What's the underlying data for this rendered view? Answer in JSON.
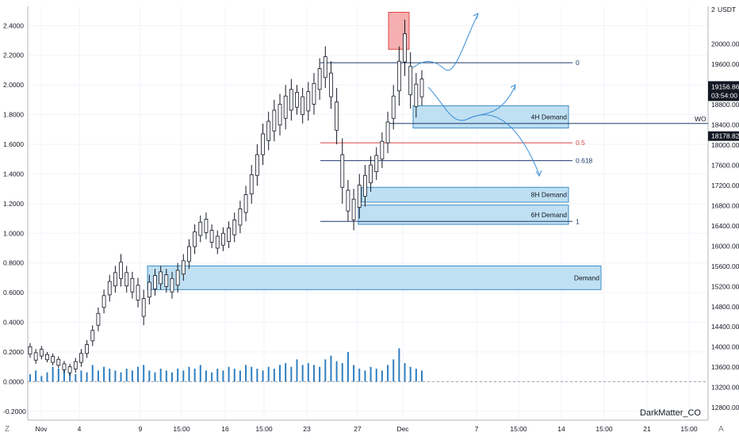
{
  "colors": {
    "background": "#ffffff",
    "grid": "#f0f3fa",
    "axis_text": "#131722",
    "candle_body": "#ffffff",
    "candle_border": "#131722",
    "zone_fill": "#bfdff2",
    "zone_border": "#3d8cc4",
    "supply_fill": "#f39b9b",
    "supply_border": "#e04848",
    "fib_line": "#1f3a6b",
    "fib_mid_line": "#d64545",
    "projection": "#3b8fd6",
    "volume": "#2f7fc1",
    "current_price_bg": "#131722"
  },
  "chart_data": {
    "type": "candlestick",
    "symbol_unit": "USDT",
    "author": "DarkMatter_CO",
    "left_axis": {
      "range": [
        -0.26,
        2.53
      ],
      "ticks": [
        "2.4000",
        "2.2000",
        "2.0000",
        "1.8000",
        "1.6000",
        "1.4000",
        "1.2000",
        "1.0000",
        "0.8000",
        "0.6000",
        "0.4000",
        "0.2000",
        "0.0000",
        "-0.2000"
      ]
    },
    "right_axis": {
      "unit": "USDT",
      "range": [
        12550,
        20750
      ],
      "ticks": [
        "20000.00",
        "19600.00",
        "19200.00",
        "18800.00",
        "18400.00",
        "18000.00",
        "17600.00",
        "17200.00",
        "16800.00",
        "16400.00",
        "16000.00",
        "15600.00",
        "15200.00",
        "14800.00",
        "14400.00",
        "14000.00",
        "13600.00",
        "13200.00",
        "12800.00"
      ],
      "partial_labels": [
        "2",
        "0"
      ],
      "price_labels": [
        "19156.86",
        "03:54:00",
        "18178.82"
      ]
    },
    "x_axis": {
      "ticks": [
        "Nov",
        "4",
        "9",
        "15:00",
        "16",
        "15:00",
        "23",
        "27",
        "Dec",
        "7",
        "15:00",
        "14",
        "15:00",
        "21",
        "15:00"
      ]
    },
    "fib_levels": [
      {
        "label": "0",
        "value": 2.15
      },
      {
        "label": "0.5",
        "value": 1.61
      },
      {
        "label": "0.618",
        "value": 1.49
      },
      {
        "label": "1",
        "value": 1.08
      }
    ],
    "zones": [
      {
        "label": "4H Demand",
        "top": 1.86,
        "bottom": 1.71
      },
      {
        "label": "8H Demand",
        "top": 1.31,
        "bottom": 1.21
      },
      {
        "label": "6H Demand",
        "top": 1.19,
        "bottom": 1.06
      },
      {
        "label": "Demand",
        "top": 0.78,
        "bottom": 0.62
      }
    ],
    "supply_zone": {
      "top": 2.49,
      "bottom": 2.24
    },
    "wo_level": {
      "label": "WO",
      "value": 1.74
    },
    "candles_hl": [
      [
        0.16,
        0.26
      ],
      [
        0.12,
        0.22
      ],
      [
        0.15,
        0.24
      ],
      [
        0.13,
        0.2
      ],
      [
        0.11,
        0.19
      ],
      [
        0.09,
        0.17
      ],
      [
        0.06,
        0.14
      ],
      [
        0.04,
        0.12
      ],
      [
        0.06,
        0.16
      ],
      [
        0.1,
        0.22
      ],
      [
        0.16,
        0.28
      ],
      [
        0.24,
        0.38
      ],
      [
        0.34,
        0.5
      ],
      [
        0.46,
        0.62
      ],
      [
        0.54,
        0.72
      ],
      [
        0.6,
        0.78
      ],
      [
        0.64,
        0.86
      ],
      [
        0.6,
        0.78
      ],
      [
        0.56,
        0.74
      ],
      [
        0.5,
        0.7
      ],
      [
        0.38,
        0.62
      ],
      [
        0.52,
        0.72
      ],
      [
        0.58,
        0.76
      ],
      [
        0.62,
        0.78
      ],
      [
        0.6,
        0.76
      ],
      [
        0.56,
        0.74
      ],
      [
        0.6,
        0.8
      ],
      [
        0.68,
        0.86
      ],
      [
        0.76,
        0.96
      ],
      [
        0.86,
        1.06
      ],
      [
        0.94,
        1.12
      ],
      [
        0.96,
        1.14
      ],
      [
        0.9,
        1.06
      ],
      [
        0.86,
        1.02
      ],
      [
        0.88,
        1.04
      ],
      [
        0.9,
        1.08
      ],
      [
        0.94,
        1.14
      ],
      [
        1.0,
        1.22
      ],
      [
        1.08,
        1.32
      ],
      [
        1.2,
        1.46
      ],
      [
        1.32,
        1.6
      ],
      [
        1.46,
        1.74
      ],
      [
        1.56,
        1.82
      ],
      [
        1.62,
        1.9
      ],
      [
        1.66,
        1.94
      ],
      [
        1.7,
        2.0
      ],
      [
        1.76,
        2.04
      ],
      [
        1.8,
        2.0
      ],
      [
        1.74,
        1.98
      ],
      [
        1.76,
        2.02
      ],
      [
        1.8,
        2.08
      ],
      [
        1.9,
        2.18
      ],
      [
        1.98,
        2.26
      ],
      [
        1.84,
        2.16
      ],
      [
        1.6,
        1.98
      ],
      [
        1.2,
        1.64
      ],
      [
        1.08,
        1.36
      ],
      [
        1.02,
        1.3
      ],
      [
        1.1,
        1.4
      ],
      [
        1.18,
        1.46
      ],
      [
        1.28,
        1.52
      ],
      [
        1.36,
        1.58
      ],
      [
        1.44,
        1.68
      ],
      [
        1.54,
        1.82
      ],
      [
        1.7,
        2.0
      ],
      [
        1.86,
        2.26
      ],
      [
        2.06,
        2.44
      ],
      [
        1.84,
        2.22
      ],
      [
        1.78,
        2.08
      ],
      [
        1.86,
        2.1
      ]
    ],
    "volume": [
      4,
      6,
      3,
      5,
      8,
      7,
      6,
      5,
      4,
      6,
      5,
      9,
      6,
      8,
      7,
      6,
      5,
      7,
      6,
      8,
      9,
      6,
      5,
      7,
      6,
      5,
      7,
      6,
      8,
      7,
      9,
      6,
      5,
      7,
      6,
      8,
      7,
      6,
      9,
      8,
      7,
      6,
      8,
      7,
      9,
      10,
      8,
      12,
      9,
      10,
      9,
      8,
      12,
      14,
      11,
      10,
      16,
      9,
      7,
      6,
      8,
      7,
      6,
      9,
      12,
      18,
      10,
      8,
      7,
      6
    ],
    "volume_unit": "relative"
  }
}
